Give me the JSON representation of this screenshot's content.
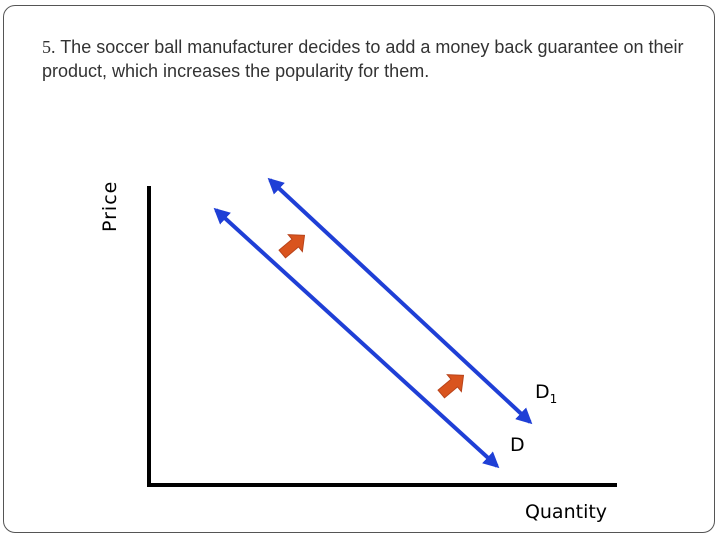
{
  "question": {
    "number": "5.",
    "text": "The soccer ball manufacturer decides to add a money back guarantee on their product, which increases the popularity for them."
  },
  "diagram": {
    "y_axis_label": "Price",
    "x_axis_label": "Quantity",
    "curves": [
      {
        "label": "D",
        "subscript": ""
      },
      {
        "label": "D",
        "subscript": "1"
      }
    ],
    "colors": {
      "axes": "#000000",
      "demand_curve": "#1f3fd6",
      "shift_arrow": "#d9541e",
      "shift_arrow_outline": "#b8431a"
    },
    "shift_arrow_icon": "arrow-up-right-icon",
    "curve_end_icon": "arrowhead-icon"
  }
}
